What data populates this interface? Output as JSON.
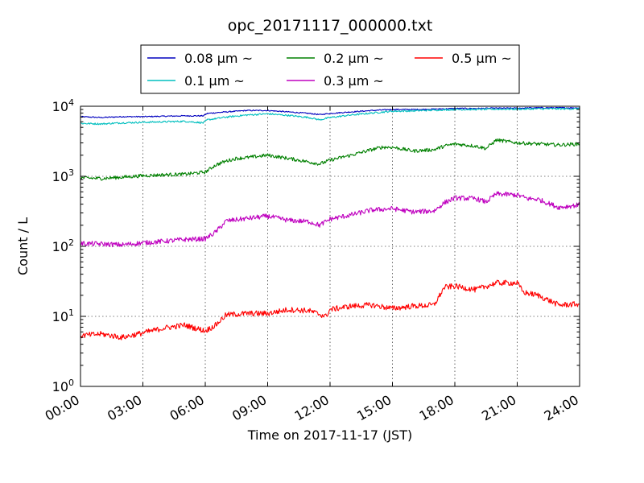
{
  "chart_data": {
    "type": "line",
    "title": "opc_20171117_000000.txt",
    "xlabel": "Time on 2017-11-17 (JST)",
    "ylabel": "Count / L",
    "x_unit": "hour",
    "xlim": [
      0,
      24
    ],
    "ylim": [
      1,
      10000
    ],
    "yscale": "log",
    "grid": true,
    "legend_position": "top, above plot",
    "x_ticks": [
      {
        "value": 0,
        "label": "00:00"
      },
      {
        "value": 3,
        "label": "03:00"
      },
      {
        "value": 6,
        "label": "06:00"
      },
      {
        "value": 9,
        "label": "09:00"
      },
      {
        "value": 12,
        "label": "12:00"
      },
      {
        "value": 15,
        "label": "15:00"
      },
      {
        "value": 18,
        "label": "18:00"
      },
      {
        "value": 21,
        "label": "21:00"
      },
      {
        "value": 24,
        "label": "24:00"
      }
    ],
    "y_ticks": [
      {
        "value": 1,
        "base": "10",
        "exp": "0"
      },
      {
        "value": 10,
        "base": "10",
        "exp": "1"
      },
      {
        "value": 100,
        "base": "10",
        "exp": "2"
      },
      {
        "value": 1000,
        "base": "10",
        "exp": "3"
      },
      {
        "value": 10000,
        "base": "10",
        "exp": "4"
      }
    ],
    "series": [
      {
        "name": "0.08 μm ~",
        "color": "#0000bf",
        "x": [
          0,
          1,
          2,
          3,
          4,
          5,
          5.9,
          6.1,
          7,
          8,
          9,
          10,
          11,
          11.5,
          12,
          13,
          14,
          15,
          16,
          17,
          18,
          19,
          20,
          21,
          22,
          23,
          24
        ],
        "y": [
          7100,
          6900,
          7100,
          7100,
          7200,
          7300,
          7300,
          7900,
          8300,
          8700,
          8700,
          8300,
          7900,
          7600,
          7900,
          8300,
          8700,
          9000,
          9000,
          9100,
          9300,
          9300,
          9400,
          9400,
          9500,
          9500,
          9500
        ]
      },
      {
        "name": "0.1 μm ~",
        "color": "#00bfbf",
        "x": [
          0,
          1,
          2,
          3,
          4,
          5,
          5.9,
          6.1,
          7,
          8,
          9,
          10,
          11,
          11.5,
          12,
          13,
          14,
          15,
          16,
          17,
          18,
          19,
          20,
          21,
          22,
          23,
          24
        ],
        "y": [
          5700,
          5600,
          5800,
          5900,
          6000,
          6100,
          5800,
          6400,
          7000,
          7500,
          7800,
          7400,
          6900,
          6400,
          6900,
          7500,
          8000,
          8500,
          8600,
          8800,
          9000,
          9000,
          9100,
          9100,
          9200,
          9200,
          9200
        ]
      },
      {
        "name": "0.2 μm ~",
        "color": "#008000",
        "x": [
          0,
          1,
          2,
          3,
          4,
          5,
          6,
          6.5,
          7,
          7.5,
          8,
          9,
          10,
          11,
          11.5,
          12,
          13,
          14,
          14.5,
          15,
          16,
          17,
          17.5,
          18,
          19,
          19.5,
          20,
          21,
          22,
          23,
          24
        ],
        "y": [
          950,
          930,
          970,
          1020,
          1050,
          1070,
          1150,
          1450,
          1650,
          1800,
          1850,
          2000,
          1800,
          1600,
          1500,
          1700,
          2000,
          2400,
          2600,
          2600,
          2300,
          2400,
          2700,
          2900,
          2700,
          2500,
          3300,
          3000,
          2900,
          2800,
          2900
        ]
      },
      {
        "name": "0.3 μm ~",
        "color": "#bf00bf",
        "x": [
          0,
          1,
          2,
          3,
          4,
          5,
          6,
          6.5,
          7,
          8,
          9,
          10,
          11,
          11.5,
          12,
          13,
          14,
          15,
          16,
          17,
          17.5,
          18,
          19,
          19.5,
          20,
          21,
          21.5,
          22,
          23,
          24
        ],
        "y": [
          110,
          108,
          105,
          112,
          118,
          125,
          128,
          160,
          230,
          250,
          270,
          235,
          225,
          200,
          245,
          280,
          330,
          345,
          310,
          320,
          420,
          490,
          480,
          430,
          560,
          540,
          480,
          470,
          360,
          390
        ]
      },
      {
        "name": "0.5 μm ~",
        "color": "#ff0000",
        "x": [
          0,
          1,
          2,
          3,
          4,
          5,
          6,
          6.5,
          7,
          8,
          9,
          10,
          11,
          11.8,
          12,
          13,
          14,
          15,
          16,
          17,
          17.5,
          18,
          19,
          20,
          21,
          21.3,
          22,
          23,
          24
        ],
        "y": [
          5.3,
          5.6,
          5.0,
          5.8,
          6.8,
          7.5,
          6.2,
          7.5,
          10.5,
          11,
          11,
          12.5,
          12,
          10,
          12.5,
          14,
          14.5,
          13,
          14,
          14.5,
          26,
          27,
          24,
          30,
          30,
          22,
          20,
          14.5,
          15
        ]
      }
    ]
  }
}
